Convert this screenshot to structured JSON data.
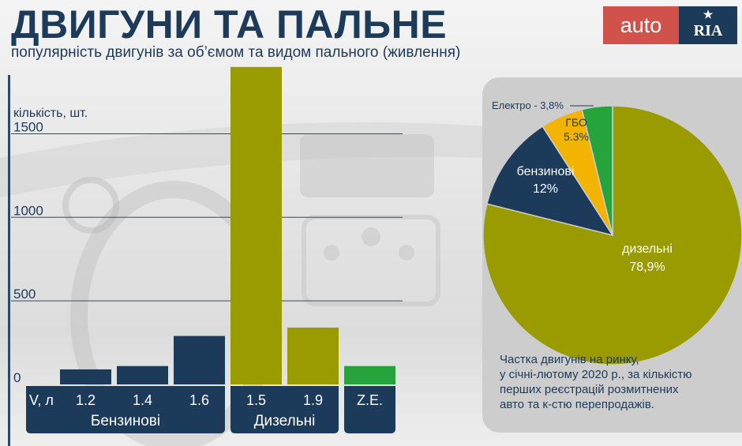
{
  "header": {
    "title": "ДВИГУНИ ТА ПАЛЬНЕ",
    "subtitle": "популярність двигунів за об’ємом та видом пального (живлення)"
  },
  "logo": {
    "left_text": "auto",
    "right_text": "RIA",
    "right_star": "★"
  },
  "colors": {
    "petrol": "#1c3a5a",
    "diesel": "#9a9b00",
    "electric": "#26a33a",
    "lpg": "#f2b400",
    "logo_red": "#d0524a",
    "logo_navy": "#1c3a5a"
  },
  "chart_data": [
    {
      "type": "bar",
      "ylabel": "кількість, шт.",
      "xlabel": "V, л",
      "ylim": [
        0,
        1900
      ],
      "yticks": [
        0,
        500,
        1000,
        1500
      ],
      "grid": true,
      "categories": [
        "1.2",
        "1.4",
        "1.6",
        "1.5",
        "1.9",
        "Z.E."
      ],
      "values": [
        90,
        110,
        290,
        1900,
        340,
        110
      ],
      "bar_colors": [
        "#1c3a5a",
        "#1c3a5a",
        "#1c3a5a",
        "#9a9b00",
        "#9a9b00",
        "#26a33a"
      ],
      "groups": [
        {
          "label": "Бензинові",
          "start": 0,
          "end": 2
        },
        {
          "label": "Дизельні",
          "start": 3,
          "end": 4
        },
        {
          "label": "",
          "start": 5,
          "end": 5
        }
      ]
    },
    {
      "type": "pie",
      "slices": [
        {
          "name": "дизельні",
          "value": 78.9,
          "value_label": "78,9%",
          "color": "#9a9b00"
        },
        {
          "name": "бензинові",
          "value": 12,
          "value_label": "12%",
          "color": "#1c3a5a"
        },
        {
          "name": "ГБО",
          "value": 5.3,
          "value_label": "5.3%",
          "color": "#f2b400"
        },
        {
          "name": "Електро",
          "value": 3.8,
          "value_label": "Електро - 3,8%",
          "color": "#26a33a"
        }
      ]
    }
  ],
  "note_lines": [
    "Частка двигунів на ринку,",
    "у січні-лютому 2020 р., за кількістю",
    "перших реєстрацій розмитнених",
    "авто та к-стю перепродажів."
  ]
}
